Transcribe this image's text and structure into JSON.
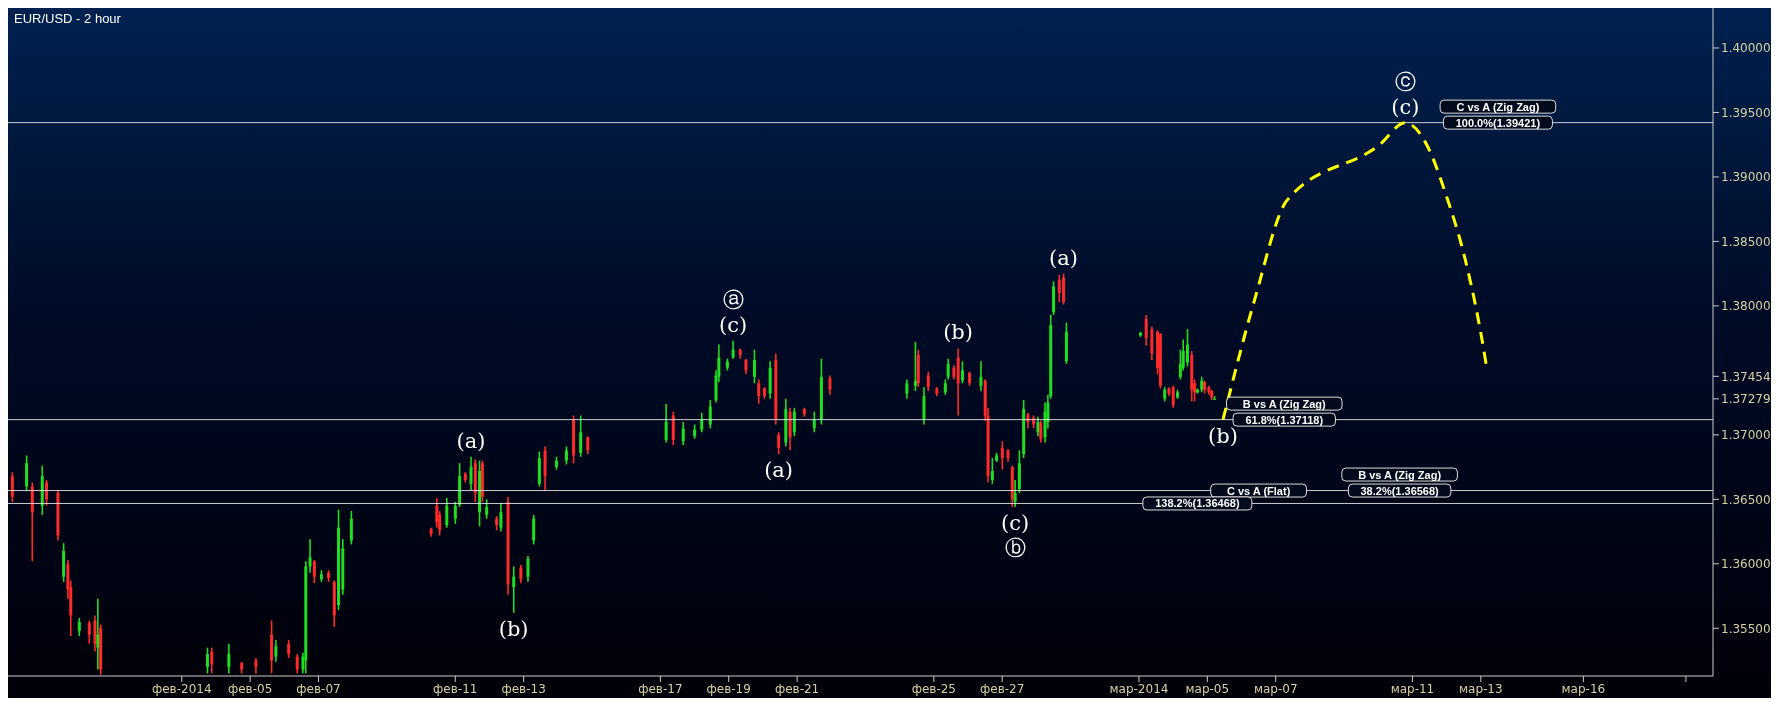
{
  "chart_data": {
    "type": "candlestick",
    "title": "EUR/USD - 2 hour",
    "x": [
      "2014-01-29T01:00",
      "2014-01-29T11:00",
      "2014-01-29T15:00",
      "2014-01-29T22:00",
      "2014-01-30T01:00",
      "2014-01-30T09:00",
      "2014-01-30T13:00",
      "2014-01-30T16:00",
      "2014-01-30T18:00",
      "2014-01-31T00:00",
      "2014-01-31T07:00",
      "2014-01-31T11:00",
      "2014-01-31T13:00",
      "2014-01-31T15:00",
      "2014-02-03T18:00",
      "2014-02-03T21:00",
      "2014-02-04T09:00",
      "2014-02-04T18:00",
      "2014-02-05T04:00",
      "2014-02-05T15:00",
      "2014-02-05T18:00",
      "2014-02-06T03:00",
      "2014-02-06T09:00",
      "2014-02-06T13:00",
      "2014-02-06T15:00",
      "2014-02-06T18:00",
      "2014-02-06T21:00",
      "2014-02-07T02:00",
      "2014-02-07T07:00",
      "2014-02-07T11:00",
      "2014-02-07T14:00",
      "2014-02-07T17:00",
      "2014-02-07T23:00",
      "2014-02-10T07:00",
      "2014-02-10T11:00",
      "2014-02-10T13:00",
      "2014-02-10T18:00",
      "2014-02-11T00:00",
      "2014-02-11T03:00",
      "2014-02-11T07:00",
      "2014-02-11T11:00",
      "2014-02-11T14:00",
      "2014-02-11T17:00",
      "2014-02-11T19:00",
      "2014-02-11T22:00",
      "2014-02-12T05:00",
      "2014-02-12T08:00",
      "2014-02-12T13:00",
      "2014-02-12T17:00",
      "2014-02-12T22:00",
      "2014-02-13T03:00",
      "2014-02-13T07:00",
      "2014-02-13T11:00",
      "2014-02-13T15:00",
      "2014-02-13T23:00",
      "2014-02-14T06:00",
      "2014-02-14T11:00",
      "2014-02-14T16:00",
      "2014-02-14T21:00",
      "2014-02-17T04:00",
      "2014-02-17T09:00",
      "2014-02-17T16:00",
      "2014-02-18T00:00",
      "2014-02-18T05:00",
      "2014-02-18T11:00",
      "2014-02-18T15:00",
      "2014-02-18T17:00",
      "2014-02-18T23:00",
      "2014-02-19T03:00",
      "2014-02-19T08:00",
      "2014-02-19T12:00",
      "2014-02-19T18:00",
      "2014-02-19T21:00",
      "2014-02-20T01:00",
      "2014-02-20T05:00",
      "2014-02-20T09:00",
      "2014-02-20T11:00",
      "2014-02-20T16:00",
      "2014-02-20T19:00",
      "2014-02-20T22:00",
      "2014-02-21T05:00",
      "2014-02-21T12:00",
      "2014-02-21T17:00",
      "2014-02-21T23:00",
      "2014-02-24T05:00",
      "2014-02-24T11:00",
      "2014-02-24T13:00",
      "2014-02-24T17:00",
      "2014-02-24T20:00",
      "2014-02-25T02:00",
      "2014-02-25T08:00",
      "2014-02-25T10:00",
      "2014-02-25T14:00",
      "2014-02-25T17:00",
      "2014-02-25T20:00",
      "2014-02-26T01:00",
      "2014-02-26T09:00",
      "2014-02-26T12:00",
      "2014-02-26T14:00",
      "2014-02-26T17:00",
      "2014-02-26T20:00",
      "2014-02-27T00:00",
      "2014-02-27T04:00",
      "2014-02-27T07:00",
      "2014-02-27T09:00",
      "2014-02-27T12:00",
      "2014-02-27T15:00",
      "2014-02-27T18:00",
      "2014-02-27T22:00",
      "2014-02-28T01:00",
      "2014-02-28T03:00",
      "2014-02-28T06:00",
      "2014-02-28T08:00",
      "2014-02-28T10:00",
      "2014-02-28T12:00",
      "2014-02-28T16:00",
      "2014-02-28T19:00",
      "2014-02-28T21:00",
      "2014-03-03T01:00",
      "2014-03-03T05:00",
      "2014-03-03T09:00",
      "2014-03-03T13:00",
      "2014-03-03T15:00",
      "2014-03-03T18:00",
      "2014-03-03T21:00",
      "2014-03-04T00:00",
      "2014-03-04T03:00",
      "2014-03-04T05:00",
      "2014-03-04T07:00",
      "2014-03-04T10:00",
      "2014-03-04T13:00",
      "2014-03-04T15:00",
      "2014-03-04T17:00",
      "2014-03-04T20:00",
      "2014-03-04T22:00",
      "2014-03-05T01:00",
      "2014-03-05T03:00",
      "2014-03-05T05:00"
    ],
    "ohlc": [
      [
        1.3668,
        1.3671,
        1.3648,
        1.3652
      ],
      [
        1.366,
        1.3684,
        1.3657,
        1.3678
      ],
      [
        1.366,
        1.3663,
        1.3602,
        1.364
      ],
      [
        1.3645,
        1.3676,
        1.3638,
        1.3668
      ],
      [
        1.3663,
        1.3665,
        1.3645,
        1.365
      ],
      [
        1.3655,
        1.3657,
        1.3618,
        1.3622
      ],
      [
        1.359,
        1.3616,
        1.3586,
        1.361
      ],
      [
        1.36,
        1.3603,
        1.3573,
        1.358
      ],
      [
        1.3582,
        1.3587,
        1.3544,
        1.356
      ],
      [
        1.3548,
        1.3558,
        1.3544,
        1.3555
      ],
      [
        1.3554,
        1.3556,
        1.3538,
        1.3545
      ],
      [
        1.3556,
        1.356,
        1.3532,
        1.3538
      ],
      [
        1.3535,
        1.3573,
        1.3518,
        1.3545
      ],
      [
        1.355,
        1.3553,
        1.3514,
        1.3518
      ],
      [
        1.352,
        1.3535,
        1.3515,
        1.353
      ],
      [
        1.3532,
        1.3535,
        1.3515,
        1.3522
      ],
      [
        1.352,
        1.3538,
        1.3515,
        1.353
      ],
      [
        1.3523,
        1.3524,
        1.3515,
        1.3518
      ],
      [
        1.3525,
        1.3527,
        1.3515,
        1.352
      ],
      [
        1.3545,
        1.3556,
        1.3515,
        1.3525
      ],
      [
        1.3528,
        1.3541,
        1.3524,
        1.3536
      ],
      [
        1.3538,
        1.3541,
        1.3527,
        1.353
      ],
      [
        1.3528,
        1.353,
        1.3515,
        1.3518
      ],
      [
        1.3518,
        1.3531,
        1.3515,
        1.3528
      ],
      [
        1.3525,
        1.3602,
        1.3515,
        1.3598
      ],
      [
        1.3598,
        1.3619,
        1.3593,
        1.3605
      ],
      [
        1.3602,
        1.3603,
        1.3585,
        1.359
      ],
      [
        1.3588,
        1.3595,
        1.3586,
        1.3592
      ],
      [
        1.3593,
        1.3595,
        1.3586,
        1.3589
      ],
      [
        1.3586,
        1.3587,
        1.3551,
        1.356
      ],
      [
        1.3568,
        1.3642,
        1.3564,
        1.3628
      ],
      [
        1.358,
        1.3619,
        1.3576,
        1.3612
      ],
      [
        1.3618,
        1.3641,
        1.3615,
        1.3635
      ],
      [
        1.3627,
        1.3628,
        1.3621,
        1.3623
      ],
      [
        1.3645,
        1.3651,
        1.3628,
        1.3632
      ],
      [
        1.3638,
        1.3641,
        1.3622,
        1.3626
      ],
      [
        1.363,
        1.3651,
        1.3628,
        1.3645
      ],
      [
        1.3635,
        1.3648,
        1.3631,
        1.3645
      ],
      [
        1.3646,
        1.3678,
        1.3644,
        1.3668
      ],
      [
        1.367,
        1.3671,
        1.3663,
        1.3665
      ],
      [
        1.3662,
        1.3683,
        1.3657,
        1.3675
      ],
      [
        1.3678,
        1.3681,
        1.3648,
        1.3655
      ],
      [
        1.364,
        1.368,
        1.3629,
        1.3672
      ],
      [
        1.3678,
        1.368,
        1.3648,
        1.3652
      ],
      [
        1.3638,
        1.365,
        1.3635,
        1.3644
      ],
      [
        1.3635,
        1.3637,
        1.3626,
        1.363
      ],
      [
        1.3628,
        1.3647,
        1.3625,
        1.364
      ],
      [
        1.3648,
        1.3652,
        1.3576,
        1.3584
      ],
      [
        1.3582,
        1.3598,
        1.3562,
        1.359
      ],
      [
        1.3597,
        1.3599,
        1.3585,
        1.3588
      ],
      [
        1.359,
        1.3606,
        1.3586,
        1.3604
      ],
      [
        1.3618,
        1.3638,
        1.3615,
        1.3635
      ],
      [
        1.3662,
        1.3687,
        1.366,
        1.3682
      ],
      [
        1.3688,
        1.3691,
        1.3657,
        1.3668
      ],
      [
        1.3675,
        1.3683,
        1.3673,
        1.368
      ],
      [
        1.368,
        1.3691,
        1.3677,
        1.3688
      ],
      [
        1.3712,
        1.3715,
        1.3678,
        1.3684
      ],
      [
        1.3686,
        1.3715,
        1.3683,
        1.3702
      ],
      [
        1.3698,
        1.3699,
        1.3685,
        1.3688
      ],
      [
        1.3696,
        1.3724,
        1.3694,
        1.371
      ],
      [
        1.3715,
        1.3718,
        1.3692,
        1.3696
      ],
      [
        1.3695,
        1.371,
        1.3692,
        1.3705
      ],
      [
        1.3699,
        1.3708,
        1.3697,
        1.3704
      ],
      [
        1.3704,
        1.3717,
        1.3702,
        1.3712
      ],
      [
        1.3708,
        1.3727,
        1.3705,
        1.3722
      ],
      [
        1.3727,
        1.375,
        1.3725,
        1.3746
      ],
      [
        1.3745,
        1.377,
        1.3741,
        1.376
      ],
      [
        1.3752,
        1.3759,
        1.375,
        1.3757
      ],
      [
        1.376,
        1.3773,
        1.3759,
        1.3766
      ],
      [
        1.3766,
        1.3767,
        1.3759,
        1.3762
      ],
      [
        1.3758,
        1.3759,
        1.3747,
        1.375
      ],
      [
        1.3745,
        1.3766,
        1.374,
        1.3758
      ],
      [
        1.374,
        1.3743,
        1.3724,
        1.373
      ],
      [
        1.3736,
        1.3737,
        1.3728,
        1.373
      ],
      [
        1.3732,
        1.3757,
        1.3728,
        1.3752
      ],
      [
        1.3758,
        1.3763,
        1.3708,
        1.3712
      ],
      [
        1.37,
        1.3702,
        1.3685,
        1.369
      ],
      [
        1.3694,
        1.3728,
        1.3691,
        1.372
      ],
      [
        1.3718,
        1.3721,
        1.3688,
        1.3698
      ],
      [
        1.3702,
        1.3721,
        1.3699,
        1.3718
      ],
      [
        1.372,
        1.3721,
        1.3714,
        1.3716
      ],
      [
        1.3705,
        1.3718,
        1.3702,
        1.3712
      ],
      [
        1.3712,
        1.3759,
        1.3708,
        1.3745
      ],
      [
        1.3744,
        1.3746,
        1.3731,
        1.3735
      ],
      [
        1.3732,
        1.3743,
        1.3728,
        1.374
      ],
      [
        1.3738,
        1.3772,
        1.3734,
        1.3742
      ],
      [
        1.3762,
        1.3766,
        1.3737,
        1.374
      ],
      [
        1.3712,
        1.3737,
        1.3708,
        1.373
      ],
      [
        1.3746,
        1.3749,
        1.3734,
        1.3737
      ],
      [
        1.3736,
        1.3737,
        1.373,
        1.3732
      ],
      [
        1.3733,
        1.3743,
        1.3731,
        1.374
      ],
      [
        1.3745,
        1.3759,
        1.3743,
        1.3755
      ],
      [
        1.3752,
        1.3754,
        1.3743,
        1.3745
      ],
      [
        1.376,
        1.3767,
        1.3715,
        1.374
      ],
      [
        1.3742,
        1.3757,
        1.374,
        1.375
      ],
      [
        1.3748,
        1.3749,
        1.3738,
        1.374
      ],
      [
        1.3738,
        1.3757,
        1.3734,
        1.3745
      ],
      [
        1.3742,
        1.3743,
        1.3711,
        1.3715
      ],
      [
        1.3715,
        1.3721,
        1.3663,
        1.3668
      ],
      [
        1.3665,
        1.3682,
        1.3662,
        1.3672
      ],
      [
        1.368,
        1.3686,
        1.3679,
        1.3684
      ],
      [
        1.369,
        1.3695,
        1.3673,
        1.3682
      ],
      [
        1.3688,
        1.3689,
        1.3679,
        1.3682
      ],
      [
        1.3675,
        1.3676,
        1.3644,
        1.365
      ],
      [
        1.3648,
        1.3665,
        1.3644,
        1.3655
      ],
      [
        1.3658,
        1.3688,
        1.3655,
        1.3678
      ],
      [
        1.3685,
        1.3727,
        1.3682,
        1.372
      ],
      [
        1.3716,
        1.3717,
        1.3705,
        1.371
      ],
      [
        1.3713,
        1.3715,
        1.3705,
        1.3708
      ],
      [
        1.3702,
        1.3714,
        1.3699,
        1.371
      ],
      [
        1.3709,
        1.3711,
        1.3694,
        1.3697
      ],
      [
        1.3698,
        1.3725,
        1.3694,
        1.3718
      ],
      [
        1.371,
        1.3731,
        1.3705,
        1.3725
      ],
      [
        1.373,
        1.3793,
        1.3728,
        1.3785
      ],
      [
        1.3795,
        1.3819,
        1.3793,
        1.3815
      ],
      [
        1.382,
        1.3824,
        1.3803,
        1.381
      ],
      [
        1.3822,
        1.3825,
        1.3801,
        1.3803
      ],
      [
        1.3757,
        1.3787,
        1.3755,
        1.378
      ],
      [
        1.3777,
        1.378,
        1.3776,
        1.3779
      ],
      [
        1.379,
        1.3793,
        1.3769,
        1.3775
      ],
      [
        1.3782,
        1.3784,
        1.3758,
        1.3763
      ],
      [
        1.378,
        1.3781,
        1.3747,
        1.3752
      ],
      [
        1.3778,
        1.3779,
        1.3736,
        1.3738
      ],
      [
        1.3728,
        1.3737,
        1.3726,
        1.3735
      ],
      [
        1.3736,
        1.3737,
        1.373,
        1.3732
      ],
      [
        1.3737,
        1.3738,
        1.3721,
        1.3723
      ],
      [
        1.3729,
        1.3735,
        1.3728,
        1.3733
      ],
      [
        1.3745,
        1.3766,
        1.3743,
        1.3755
      ],
      [
        1.3752,
        1.3774,
        1.375,
        1.3765
      ],
      [
        1.3756,
        1.3782,
        1.3753,
        1.377
      ],
      [
        1.3762,
        1.3765,
        1.3726,
        1.3735
      ],
      [
        1.374,
        1.3743,
        1.3726,
        1.3733
      ],
      [
        1.3733,
        1.3736,
        1.3732,
        1.3735
      ],
      [
        1.3735,
        1.3745,
        1.3733,
        1.3742
      ],
      [
        1.3741,
        1.3742,
        1.3732,
        1.3735
      ],
      [
        1.3737,
        1.3738,
        1.3731,
        1.3733
      ],
      [
        1.3734,
        1.3735,
        1.3727,
        1.3729
      ],
      [
        1.3728,
        1.373,
        1.3727,
        1.3728
      ]
    ],
    "colors": [
      "#ff2a2a",
      "#22dd22",
      "#ff2a2a",
      "#22dd22",
      "#ff2a2a",
      "#ff2a2a",
      "#22dd22",
      "#ff2a2a",
      "#ff2a2a",
      "#22dd22",
      "#ff2a2a",
      "#ff2a2a",
      "#22dd22",
      "#ff2a2a",
      "#22dd22",
      "#ff2a2a",
      "#22dd22",
      "#ff2a2a",
      "#ff2a2a",
      "#ff2a2a",
      "#22dd22",
      "#ff2a2a",
      "#ff2a2a",
      "#22dd22",
      "#22dd22",
      "#22dd22",
      "#ff2a2a",
      "#22dd22",
      "#ff2a2a",
      "#ff2a2a",
      "#22dd22",
      "#22dd22",
      "#22dd22",
      "#ff2a2a",
      "#ff2a2a",
      "#ff2a2a",
      "#22dd22",
      "#22dd22",
      "#22dd22",
      "#ff2a2a",
      "#22dd22",
      "#ff2a2a",
      "#22dd22",
      "#ff2a2a",
      "#22dd22",
      "#ff2a2a",
      "#22dd22",
      "#ff2a2a",
      "#22dd22",
      "#ff2a2a",
      "#22dd22",
      "#22dd22",
      "#22dd22",
      "#ff2a2a",
      "#22dd22",
      "#22dd22",
      "#ff2a2a",
      "#22dd22",
      "#ff2a2a",
      "#22dd22",
      "#ff2a2a",
      "#22dd22",
      "#22dd22",
      "#22dd22",
      "#22dd22",
      "#22dd22",
      "#22dd22",
      "#22dd22",
      "#22dd22",
      "#ff2a2a",
      "#ff2a2a",
      "#22dd22",
      "#ff2a2a",
      "#ff2a2a",
      "#22dd22",
      "#ff2a2a",
      "#ff2a2a",
      "#22dd22",
      "#ff2a2a",
      "#22dd22",
      "#ff2a2a",
      "#22dd22",
      "#22dd22",
      "#ff2a2a",
      "#22dd22",
      "#22dd22",
      "#ff2a2a",
      "#22dd22",
      "#ff2a2a",
      "#ff2a2a",
      "#22dd22",
      "#22dd22",
      "#ff2a2a",
      "#ff2a2a",
      "#22dd22",
      "#ff2a2a",
      "#22dd22",
      "#ff2a2a",
      "#ff2a2a",
      "#22dd22",
      "#22dd22",
      "#ff2a2a",
      "#ff2a2a",
      "#ff2a2a",
      "#22dd22",
      "#22dd22",
      "#22dd22",
      "#ff2a2a",
      "#ff2a2a",
      "#22dd22",
      "#ff2a2a",
      "#22dd22",
      "#22dd22",
      "#22dd22",
      "#22dd22",
      "#ff2a2a",
      "#ff2a2a",
      "#22dd22",
      "#22dd22",
      "#ff2a2a",
      "#ff2a2a",
      "#ff2a2a",
      "#ff2a2a",
      "#22dd22",
      "#ff2a2a",
      "#ff2a2a",
      "#22dd22",
      "#22dd22",
      "#22dd22",
      "#22dd22",
      "#ff2a2a",
      "#ff2a2a",
      "#22dd22",
      "#22dd22",
      "#ff2a2a",
      "#ff2a2a",
      "#ff2a2a",
      "#22dd22"
    ],
    "series": [
      {
        "type": "line",
        "color": "#ffff00",
        "line_style": "dashed",
        "x": [
          "2014-03-05T11:00",
          "2014-03-06T09:00",
          "2014-03-07T08:00",
          "2014-03-10T01:00",
          "2014-03-10T19:00",
          "2014-03-11T10:00",
          "2014-03-11T23:00",
          "2014-03-12T15:00",
          "2014-03-13T00:00",
          "2014-03-13T04:00"
        ],
        "values": [
          1.37118,
          1.3804,
          1.3882,
          1.3925,
          1.39421,
          1.3925,
          1.3888,
          1.3827,
          1.3779,
          1.3753
        ]
      }
    ],
    "xlim": [
      "2014-01-28T22:00",
      "2014-03-19T19:00"
    ],
    "xticks": [
      {
        "value": "2014-02-03",
        "label": "фев-2014"
      },
      {
        "value": "2014-02-05",
        "label": "фев-05"
      },
      {
        "value": "2014-02-07",
        "label": "фев-07"
      },
      {
        "value": "2014-02-11",
        "label": "фев-11"
      },
      {
        "value": "2014-02-13",
        "label": "фев-13"
      },
      {
        "value": "2014-02-17",
        "label": "фев-17"
      },
      {
        "value": "2014-02-19",
        "label": "фев-19"
      },
      {
        "value": "2014-02-21",
        "label": "фев-21"
      },
      {
        "value": "2014-02-25",
        "label": "фев-25"
      },
      {
        "value": "2014-02-27",
        "label": "фев-27"
      },
      {
        "value": "2014-03-03",
        "label": "мар-2014"
      },
      {
        "value": "2014-03-05",
        "label": "мар-05"
      },
      {
        "value": "2014-03-07",
        "label": "мар-07"
      },
      {
        "value": "2014-03-11",
        "label": "мар-11"
      },
      {
        "value": "2014-03-13",
        "label": "мар-13"
      },
      {
        "value": "2014-03-16",
        "label": "мар-16"
      },
      {
        "value": "2014-03-19",
        "label": null
      }
    ],
    "ylim": [
      1.3513,
      1.4031
    ],
    "yticks": [
      {
        "value": 1.355,
        "label": "1.35500"
      },
      {
        "value": 1.36,
        "label": "1.36000"
      },
      {
        "value": 1.365,
        "label": "1.36500"
      },
      {
        "value": 1.37,
        "label": "1.37000"
      },
      1.37279,
      1.37454,
      {
        "value": 1.38,
        "label": "1.38000"
      },
      {
        "value": 1.385,
        "label": "1.38500"
      },
      {
        "value": 1.39,
        "label": "1.39000"
      },
      {
        "value": 1.395,
        "label": "1.39500"
      },
      {
        "value": 1.4,
        "label": "1.40000"
      }
    ],
    "ref_lines": [
      {
        "axis": "y",
        "value": 1.39421,
        "color": "#ffffff"
      },
      {
        "axis": "y",
        "value": 1.37118,
        "color": "#ffffff"
      },
      {
        "axis": "y",
        "value": 1.36568,
        "color": "#ffffff"
      },
      {
        "axis": "y",
        "value": 1.36468,
        "color": "#ffffff"
      }
    ],
    "annotations": [
      {
        "text": "(a)",
        "x": "2014-02-11T11:00",
        "y": 1.3683
      },
      {
        "text": "(b)",
        "x": "2014-02-12T17:00",
        "y": 1.3562
      },
      {
        "text": "(c)",
        "x": "2014-02-19T03:00",
        "y": 1.3773
      },
      {
        "text": "ⓐ",
        "x": "2014-02-19T03:00",
        "y": 1.3773
      },
      {
        "text": "(a)",
        "x": "2014-02-20T11:00",
        "y": 1.3685
      },
      {
        "text": "(b)",
        "x": "2014-02-25T17:00",
        "y": 1.3767
      },
      {
        "text": "(c)",
        "x": "2014-02-27T09:00",
        "y": 1.3644
      },
      {
        "text": "ⓑ",
        "x": "2014-02-27T09:00",
        "y": 1.3644
      },
      {
        "text": "(a)",
        "x": "2014-02-28T19:00",
        "y": 1.3825
      },
      {
        "text": "(b)",
        "x": "2014-03-05T11:00",
        "y": 1.37118
      },
      {
        "text": "(c)",
        "x": "2014-03-10T19:00",
        "y": 1.39421
      },
      {
        "text": "ⓒ",
        "x": "2014-03-10T19:00",
        "y": 1.39421
      },
      {
        "text": "100.0%(1.39421)",
        "x": "2014-03-13T12:00",
        "y": 1.39421
      },
      {
        "text": "C vs A (Zig Zag)",
        "x": "2014-03-13T12:00",
        "y": 1.39421
      },
      {
        "text": "61.8%(1.37118)",
        "x": "2014-03-07T06:00",
        "y": 1.37118
      },
      {
        "text": "B vs A (Zig Zag)",
        "x": "2014-03-07T06:00",
        "y": 1.37118
      },
      {
        "text": "38.2%(1.36568)",
        "x": "2014-03-10T15:00",
        "y": 1.36568
      },
      {
        "text": "B vs A (Zig Zag)",
        "x": "2014-03-10T15:00",
        "y": 1.36568
      },
      {
        "text": "C vs A (Flat)",
        "x": "2014-03-06T12:00",
        "y": 1.36568
      },
      {
        "text": "138.2%(1.36468)",
        "x": "2014-03-04T17:00",
        "y": 1.36468
      }
    ]
  }
}
